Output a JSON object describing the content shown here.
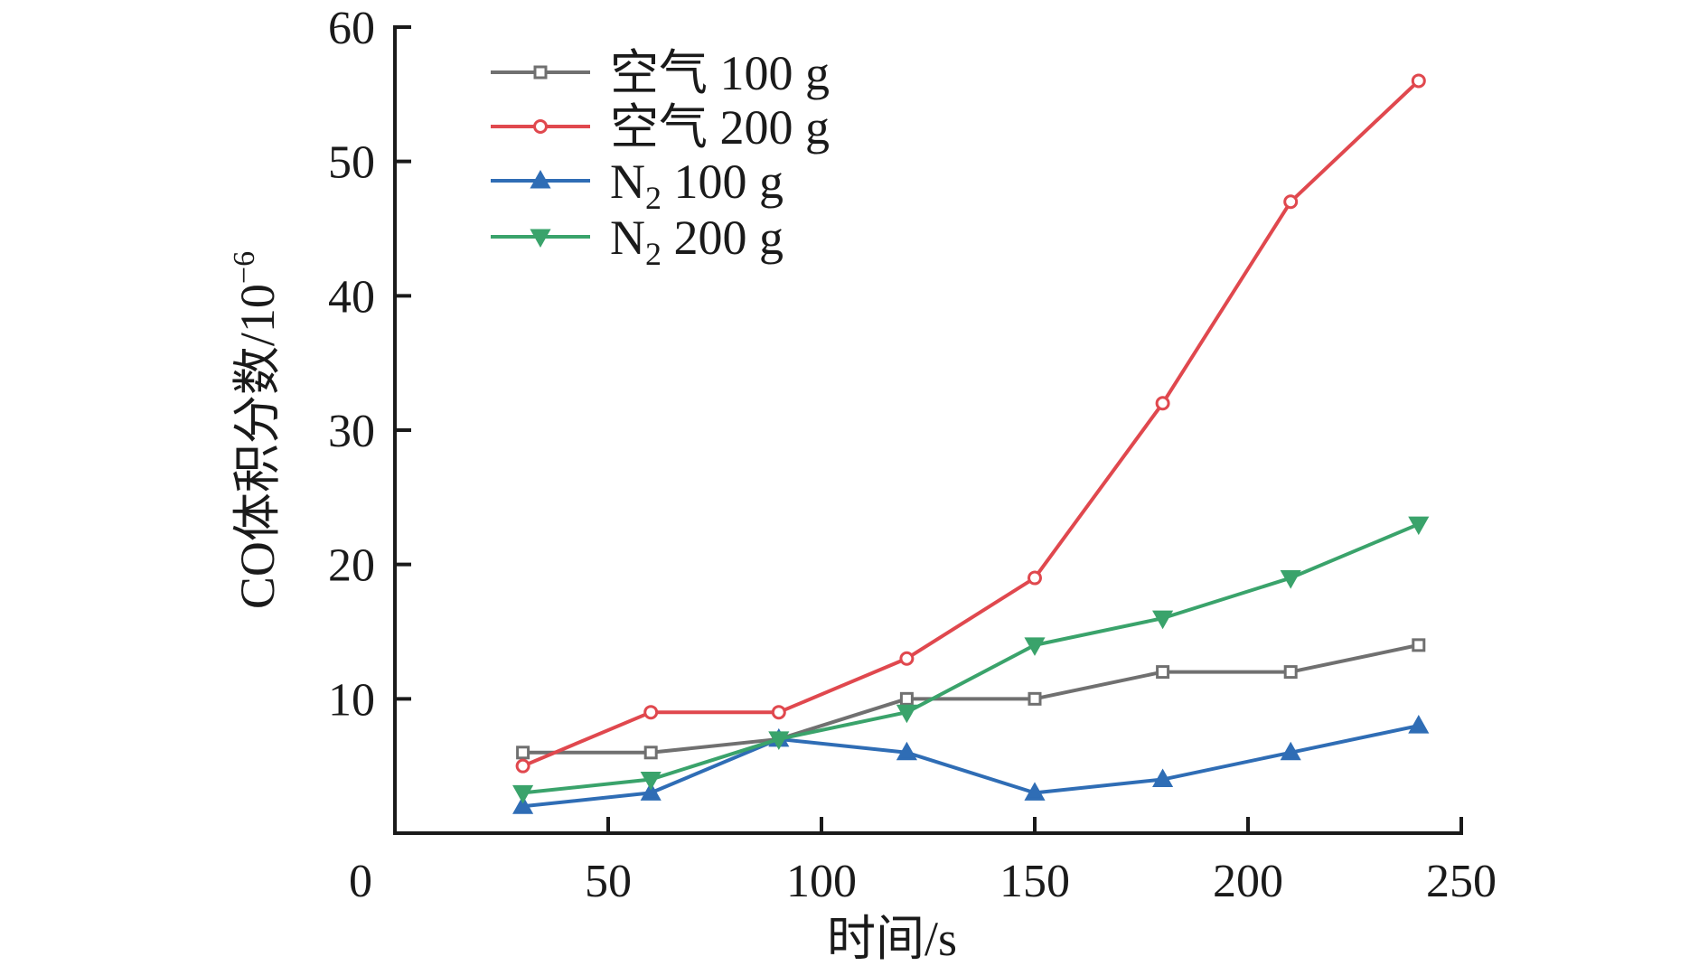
{
  "chart_data": {
    "type": "line",
    "title": "",
    "xlabel": "时间/s",
    "ylabel": "CO体积分数/10",
    "ylabel_exponent": "−6",
    "xlim": [
      0,
      250
    ],
    "ylim": [
      0,
      60
    ],
    "x_ticks": [
      "0",
      "50",
      "100",
      "150",
      "200",
      "250"
    ],
    "y_ticks": [
      "10",
      "20",
      "30",
      "40",
      "50",
      "60"
    ],
    "grid": false,
    "legend_position": "top-left",
    "x": [
      30,
      60,
      90,
      120,
      150,
      180,
      210,
      240
    ],
    "series": [
      {
        "name": "空气 100 g",
        "name_base": "空气",
        "name_sub": "",
        "name_rest": " 100 g",
        "color": "#707070",
        "marker": "square",
        "values": [
          6,
          6,
          7,
          10,
          10,
          12,
          12,
          14
        ]
      },
      {
        "name": "空气 200 g",
        "name_base": "空气",
        "name_sub": "",
        "name_rest": " 200 g",
        "color": "#e0484e",
        "marker": "circle",
        "values": [
          5,
          9,
          9,
          13,
          19,
          32,
          47,
          56
        ]
      },
      {
        "name": "N2 100 g",
        "name_base": "N",
        "name_sub": "2",
        "name_rest": " 100 g",
        "color": "#2f6db5",
        "marker": "triangle-up",
        "values": [
          2,
          3,
          7,
          6,
          3,
          4,
          6,
          8
        ]
      },
      {
        "name": "N2 200 g",
        "name_base": "N",
        "name_sub": "2",
        "name_rest": " 200 g",
        "color": "#3aa36b",
        "marker": "triangle-down",
        "values": [
          3,
          4,
          7,
          9,
          14,
          16,
          19,
          23
        ]
      }
    ]
  }
}
